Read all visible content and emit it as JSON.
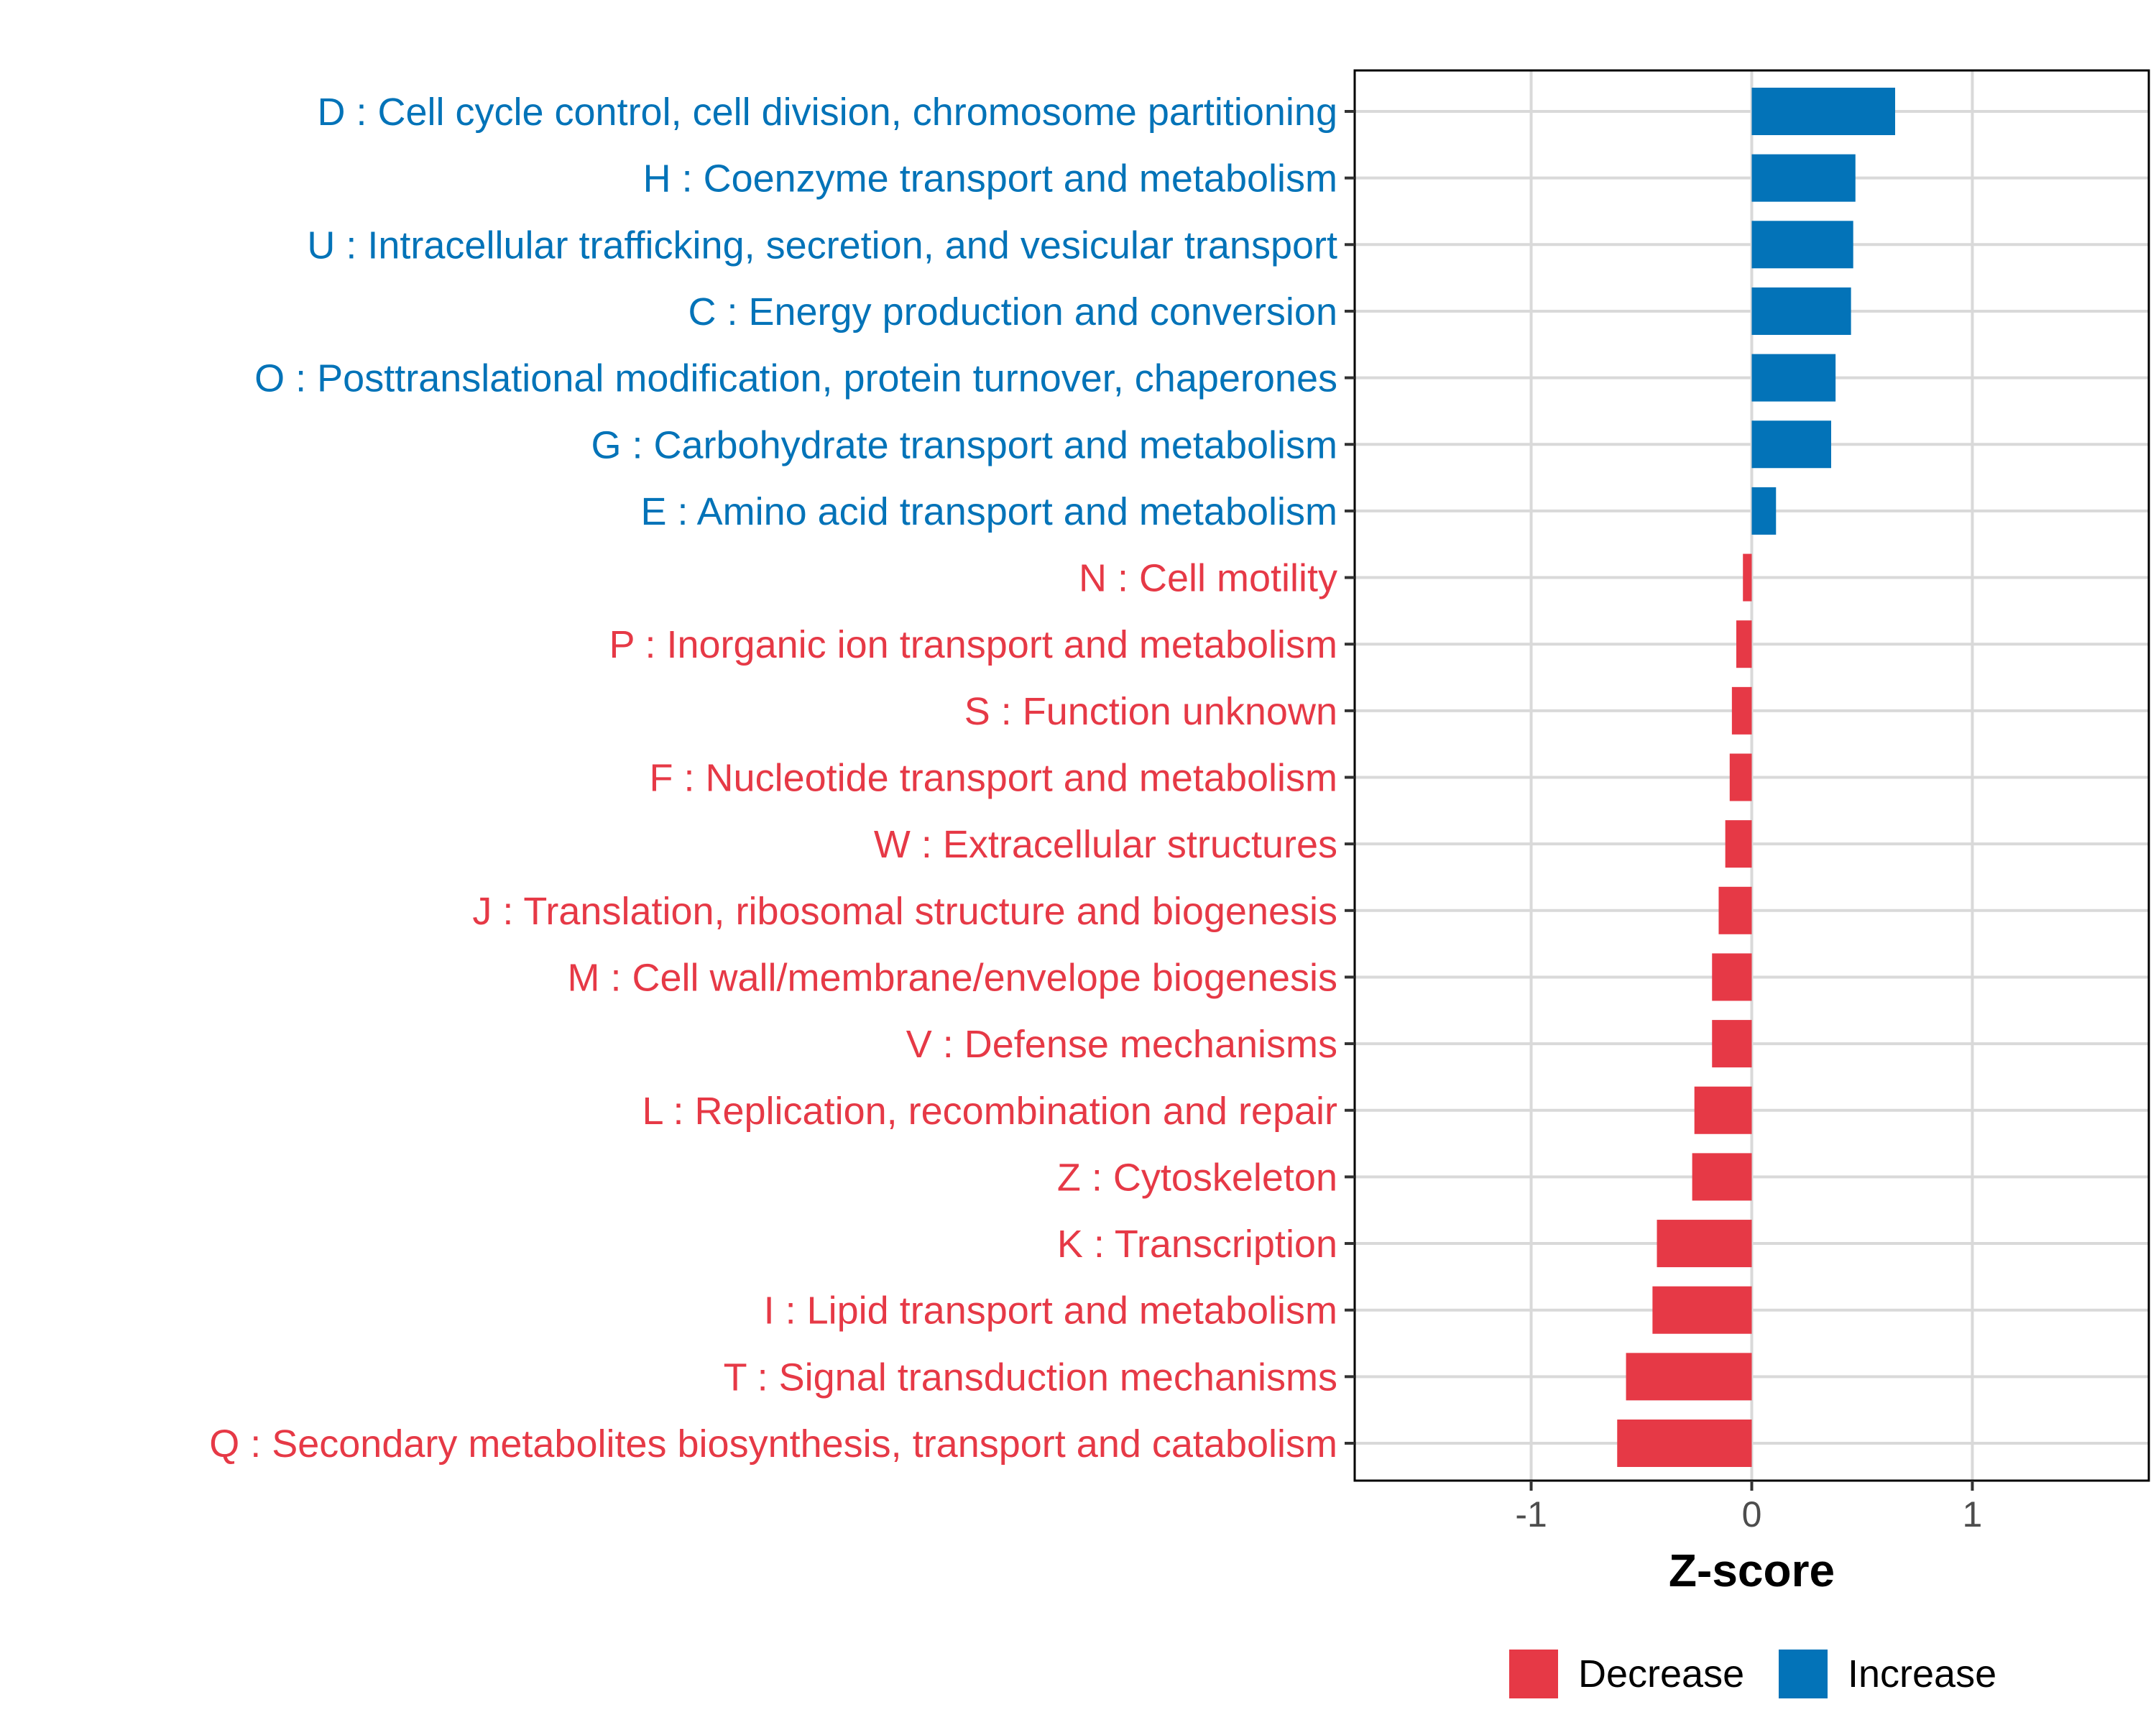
{
  "chart_data": {
    "type": "bar",
    "orientation": "horizontal",
    "xlabel": "Z-score",
    "xlim": [
      -1.8,
      1.8
    ],
    "xticks": [
      -1,
      0,
      1
    ],
    "xtick_labels": [
      "-1",
      "0",
      "1"
    ],
    "grid": true,
    "legend_position": "bottom",
    "colors": {
      "Increase": "#0373B8",
      "Decrease": "#E63946"
    },
    "legend": [
      {
        "name": "Decrease",
        "color": "#E63946"
      },
      {
        "name": "Increase",
        "color": "#0373B8"
      }
    ],
    "categories": [
      {
        "label": "D : Cell cycle control, cell division, chromosome partitioning",
        "value": 0.65,
        "direction": "Increase"
      },
      {
        "label": "H : Coenzyme transport and metabolism",
        "value": 0.47,
        "direction": "Increase"
      },
      {
        "label": "U : Intracellular trafficking, secretion, and vesicular transport",
        "value": 0.46,
        "direction": "Increase"
      },
      {
        "label": "C : Energy production and conversion",
        "value": 0.45,
        "direction": "Increase"
      },
      {
        "label": "O : Posttranslational modification, protein turnover, chaperones",
        "value": 0.38,
        "direction": "Increase"
      },
      {
        "label": "G : Carbohydrate transport and metabolism",
        "value": 0.36,
        "direction": "Increase"
      },
      {
        "label": "E : Amino acid transport and metabolism",
        "value": 0.11,
        "direction": "Increase"
      },
      {
        "label": "N : Cell motility",
        "value": -0.04,
        "direction": "Decrease"
      },
      {
        "label": "P : Inorganic ion transport and metabolism",
        "value": -0.07,
        "direction": "Decrease"
      },
      {
        "label": "S : Function unknown",
        "value": -0.09,
        "direction": "Decrease"
      },
      {
        "label": "F : Nucleotide transport and metabolism",
        "value": -0.1,
        "direction": "Decrease"
      },
      {
        "label": "W : Extracellular structures",
        "value": -0.12,
        "direction": "Decrease"
      },
      {
        "label": "J : Translation, ribosomal structure and biogenesis",
        "value": -0.15,
        "direction": "Decrease"
      },
      {
        "label": "M : Cell wall/membrane/envelope biogenesis",
        "value": -0.18,
        "direction": "Decrease"
      },
      {
        "label": "V : Defense mechanisms",
        "value": -0.18,
        "direction": "Decrease"
      },
      {
        "label": "L : Replication, recombination and repair",
        "value": -0.26,
        "direction": "Decrease"
      },
      {
        "label": "Z : Cytoskeleton",
        "value": -0.27,
        "direction": "Decrease"
      },
      {
        "label": "K : Transcription",
        "value": -0.43,
        "direction": "Decrease"
      },
      {
        "label": "I : Lipid transport and metabolism",
        "value": -0.45,
        "direction": "Decrease"
      },
      {
        "label": "T : Signal transduction mechanisms",
        "value": -0.57,
        "direction": "Decrease"
      },
      {
        "label": "Q : Secondary metabolites biosynthesis, transport and catabolism",
        "value": -0.61,
        "direction": "Decrease"
      }
    ]
  }
}
